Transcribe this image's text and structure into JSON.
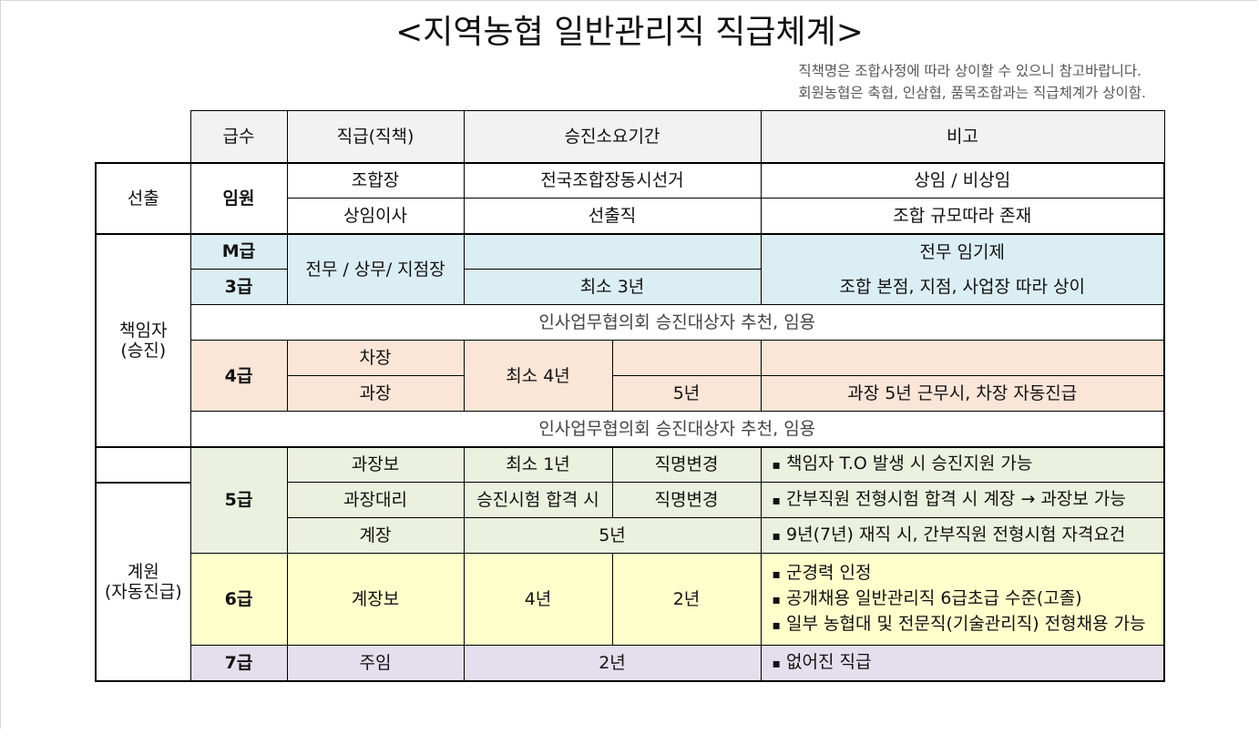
{
  "title": "<지역농협 일반관리직 직급체계>",
  "notes": [
    "직책명은 조합사정에 따라 상이할 수 있으니 참고바랍니다.",
    "회원농협은 축협, 인삼협, 품목조합과는 직급체계가 상이함."
  ],
  "header": {
    "grade": "급수",
    "position": "직급(직책)",
    "period": "승진소요기간",
    "remarks": "비고"
  },
  "groups": {
    "elected": "선출",
    "manager": "책임자\n(승진)",
    "staff": "계원\n(자동진급)"
  },
  "rows": {
    "officer": {
      "grade": "임원",
      "r1": {
        "position": "조합장",
        "period": "전국조합장동시선거",
        "remarks": "상임 / 비상임"
      },
      "r2": {
        "position": "상임이사",
        "period": "선출직",
        "remarks": "조합 규모따라 존재"
      }
    },
    "m_grade": {
      "grade": "M급",
      "remarks": "전무 임기제"
    },
    "g3": {
      "grade": "3급",
      "period": "최소 3년",
      "remarks": "조합 본점, 지점, 사업장 따라 상이"
    },
    "g3_position": "전무 / 상무/ 지점장",
    "promotion_note": "인사업무협의회 승진대상자 추천, 임용",
    "g4": {
      "grade": "4급",
      "r1": {
        "position": "차장"
      },
      "period": "최소 4년",
      "r2": {
        "position": "과장",
        "period2": "5년",
        "remarks": "과장 5년 근무시, 차장 자동진급"
      }
    },
    "promotion_note2": "인사업무협의회 승진대상자 추천, 임용",
    "g5": {
      "grade": "5급",
      "r1": {
        "position": "과장보",
        "period": "최소 1년",
        "period2": "직명변경",
        "remarks": "책임자 T.O 발생 시 승진지원 가능"
      },
      "r2": {
        "position": "과장대리",
        "period": "승진시험 합격 시",
        "period2": "직명변경",
        "remarks": "간부직원 전형시험 합격 시 계장 → 과장보 가능"
      },
      "r3": {
        "position": "계장",
        "period": "5년",
        "remarks": "9년(7년) 재직 시, 간부직원 전형시험 자격요건"
      }
    },
    "g6": {
      "grade": "6급",
      "position": "계장보",
      "period": "4년",
      "period2": "2년",
      "remarks": [
        "군경력 인정",
        "공개채용 일반관리직 6급초급 수준(고졸)",
        "일부 농협대 및 전문직(기술관리직) 전형채용 가능"
      ]
    },
    "g7": {
      "grade": "7급",
      "position": "주임",
      "period": "2년",
      "remarks": "없어진 직급"
    }
  },
  "colors": {
    "header": "#f2f2f2",
    "blue": "#dbeef3",
    "peach": "#fbe5d6",
    "green": "#ebf1de",
    "yellow": "#ffffcc",
    "lavender": "#e4dfec"
  }
}
